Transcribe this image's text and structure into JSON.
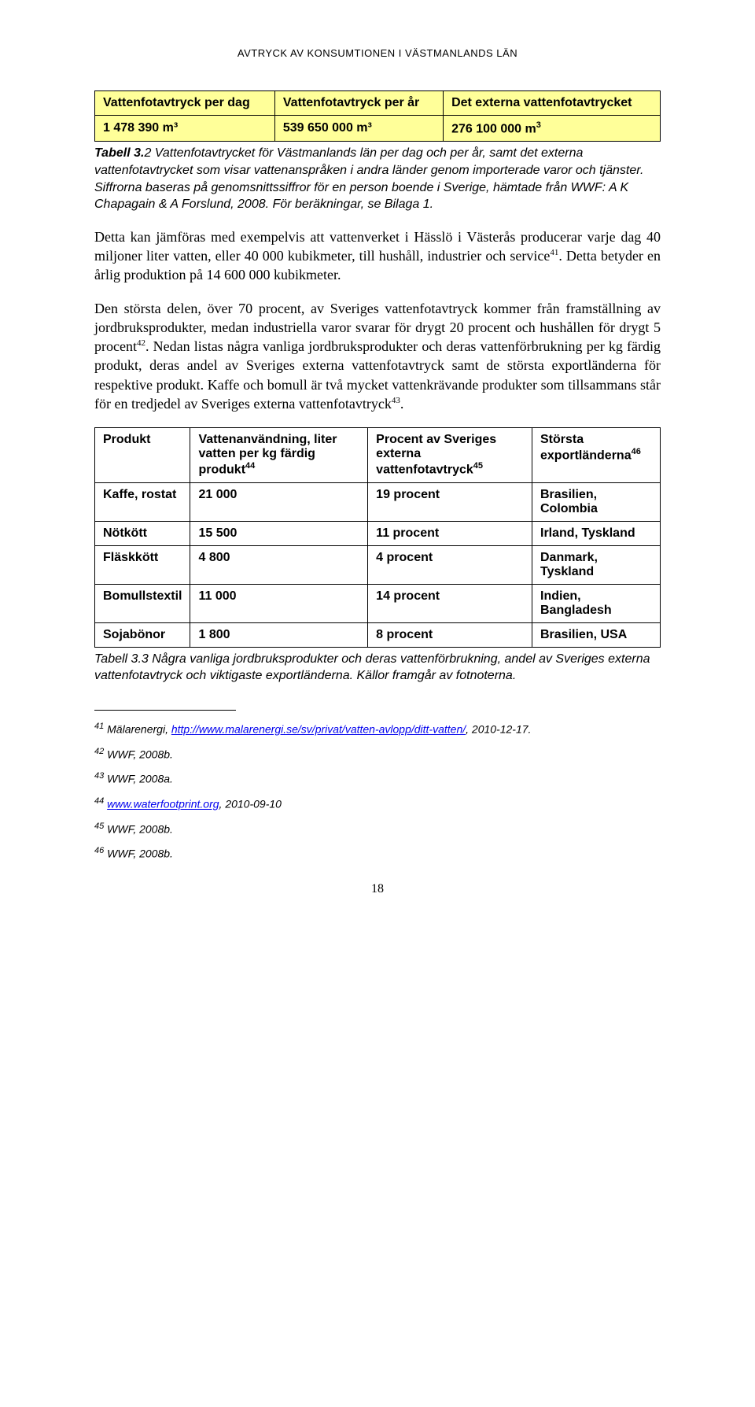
{
  "running_head": "AVTRYCK AV KONSUMTIONEN I VÄSTMANLANDS LÄN",
  "table1": {
    "headers": [
      "Vattenfotavtryck per dag",
      "Vattenfotavtryck per år",
      "Det externa vattenfotavtrycket"
    ],
    "row": [
      "1 478 390 m³",
      "539 650 000 m³",
      "276 100 000 m"
    ],
    "row_sup": "3"
  },
  "caption1": {
    "label": "Tabell 3.",
    "text": "2 Vattenfotavtrycket för Västmanlands län per dag och per år, samt det externa vattenfotavtrycket som visar vattenanspråken i andra länder genom importerade varor och tjänster. Siffrorna baseras på genomsnittssiffror för en person boende i Sverige, hämtade från WWF: A K Chapagain & A Forslund, 2008. För beräkningar, se Bilaga 1."
  },
  "para1": {
    "a": "Detta kan jämföras med exempelvis att vattenverket i Hässlö i Västerås producerar varje dag 40 miljoner liter vatten, eller 40 000 kubikmeter, till hushåll, industrier och service",
    "sup1": "41",
    "b": ". Detta betyder en årlig produktion på 14 600 000 kubikmeter."
  },
  "para2": {
    "a": "Den största delen, över 70 procent, av Sveriges vattenfotavtryck kommer från framställning av jordbruksprodukter, medan industriella varor svarar för drygt 20 procent och hushållen för drygt 5 procent",
    "sup1": "42",
    "b": ". Nedan listas några vanliga jordbruksprodukter och deras vattenförbrukning per kg färdig produkt, deras andel av Sveriges externa vattenfotavtryck samt de största exportländerna för respektive produkt. Kaffe och bomull är två mycket vattenkrävande produkter som tillsammans står för en tredjedel av Sveriges externa vattenfotavtryck",
    "sup2": "43",
    "c": "."
  },
  "table2": {
    "h1": "Produkt",
    "h2a": "Vattenanvändning, liter vatten per kg färdig produkt",
    "h2sup": "44",
    "h3a": "Procent av Sveriges externa vattenfotavtryck",
    "h3sup": "45",
    "h4a": "Största exportländerna",
    "h4sup": "46",
    "rows": [
      [
        "Kaffe, rostat",
        "21 000",
        "19 procent",
        "Brasilien, Colombia"
      ],
      [
        "Nötkött",
        "15 500",
        "11 procent",
        "Irland, Tyskland"
      ],
      [
        "Fläskkött",
        "4 800",
        "4 procent",
        "Danmark, Tyskland"
      ],
      [
        "Bomullstextil",
        "11 000",
        "14 procent",
        "Indien, Bangladesh"
      ],
      [
        "Sojabönor",
        "1 800",
        "8 procent",
        "Brasilien, USA"
      ]
    ]
  },
  "caption2": "Tabell 3.3 Några vanliga jordbruksprodukter och deras vattenförbrukning, andel av Sveriges externa vattenfotavtryck och viktigaste exportländerna. Källor framgår av fotnoterna.",
  "footnotes": {
    "f41_sup": "41",
    "f41_a": " Mälarenergi, ",
    "f41_link": "http://www.malarenergi.se/sv/privat/vatten-avlopp/ditt-vatten/",
    "f41_b": ", 2010-12-17.",
    "f42_sup": "42",
    "f42": " WWF, 2008b.",
    "f43_sup": "43",
    "f43": " WWF, 2008a.",
    "f44_sup": "44",
    "f44_a": " ",
    "f44_link": "www.waterfootprint.org",
    "f44_b": ", 2010-09-10",
    "f45_sup": "45",
    "f45": " WWF, 2008b.",
    "f46_sup": "46",
    "f46": " WWF, 2008b."
  },
  "pagenum": "18"
}
